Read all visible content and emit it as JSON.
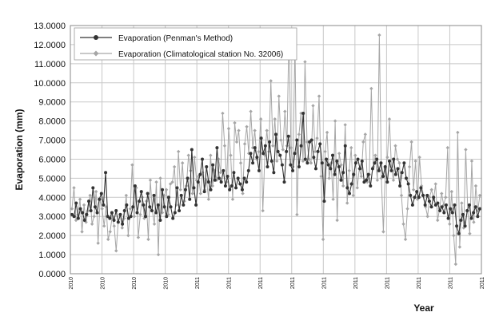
{
  "chart_data": {
    "type": "line",
    "xlabel": "Year",
    "ylabel": "Evaporation (mm)",
    "ylim": [
      0,
      13
    ],
    "ytick_labels": [
      "0.0000",
      "1.0000",
      "2.0000",
      "3.0000",
      "4.0000",
      "5.0000",
      "6.0000",
      "7.0000",
      "8.0000",
      "9.0000",
      "10.0000",
      "11.0000",
      "12.0000",
      "13.0000"
    ],
    "xtick_labels": [
      "2010",
      "2010",
      "2010",
      "2010",
      "2011",
      "2011",
      "2011",
      "2011",
      "2011",
      "2011",
      "2011",
      "2011",
      "2011",
      "2011"
    ],
    "grid": true,
    "legend_position": "top-left",
    "colors": {
      "penman": "#333333",
      "station": "#a6a6a6"
    },
    "series": [
      {
        "name": "Evaporation (Penman's Method)",
        "marker": "circle",
        "values": [
          3.1,
          3.0,
          3.7,
          2.9,
          3.4,
          3.2,
          2.8,
          3.1,
          3.8,
          3.3,
          4.5,
          3.5,
          3.2,
          3.9,
          4.2,
          3.6,
          5.3,
          3.0,
          2.9,
          3.2,
          2.8,
          3.3,
          2.7,
          3.1,
          2.6,
          3.3,
          3.6,
          2.9,
          3.0,
          3.5,
          4.6,
          3.2,
          3.8,
          4.3,
          3.6,
          3.0,
          4.2,
          3.5,
          3.3,
          4.1,
          3.2,
          3.6,
          2.8,
          4.4,
          3.5,
          3.0,
          4.0,
          3.5,
          2.9,
          3.2,
          4.5,
          3.3,
          4.1,
          3.6,
          4.4,
          5.0,
          3.9,
          6.5,
          4.5,
          3.6,
          4.8,
          5.2,
          6.0,
          4.3,
          5.6,
          4.8,
          4.4,
          5.7,
          4.9,
          6.6,
          5.0,
          4.8,
          5.4,
          4.6,
          5.1,
          4.4,
          4.6,
          5.3,
          4.5,
          5.0,
          4.7,
          4.4,
          5.0,
          4.8,
          5.4,
          6.3,
          5.8,
          6.6,
          6.1,
          5.4,
          7.1,
          6.3,
          6.7,
          5.6,
          6.9,
          5.9,
          5.3,
          7.3,
          6.4,
          6.2,
          5.7,
          4.8,
          6.4,
          7.2,
          5.7,
          5.4,
          6.3,
          7.0,
          5.6,
          6.7,
          8.4,
          6.0,
          5.8,
          6.9,
          7.0,
          6.1,
          5.5,
          6.4,
          6.8,
          5.8,
          3.8,
          6.0,
          5.7,
          5.5,
          6.2,
          5.2,
          5.9,
          5.6,
          4.9,
          5.3,
          6.7,
          4.5,
          4.2,
          4.7,
          5.2,
          5.8,
          6.0,
          5.5,
          5.9,
          4.8,
          4.9,
          5.2,
          4.6,
          5.5,
          5.8,
          6.0,
          5.4,
          5.8,
          5.1,
          5.6,
          4.8,
          5.9,
          5.4,
          6.0,
          5.2,
          5.5,
          4.6,
          5.3,
          5.8,
          5.0,
          4.7,
          4.1,
          3.6,
          4.0,
          4.3,
          4.0,
          4.5,
          4.1,
          3.6,
          4.1,
          3.8,
          3.5,
          4.0,
          3.6,
          3.7,
          3.3,
          3.5,
          3.2,
          3.6,
          2.9,
          3.4,
          3.2,
          3.6,
          2.5,
          2.1,
          2.8,
          3.1,
          2.5,
          3.3,
          3.6,
          2.9,
          3.2,
          3.5,
          3.0,
          3.4
        ]
      },
      {
        "name": "Evaporation (Climatological station No. 32006)",
        "marker": "diamond",
        "values": [
          3.4,
          4.5,
          2.8,
          3.1,
          3.9,
          2.2,
          3.6,
          2.7,
          3.3,
          4.1,
          2.6,
          3.0,
          4.3,
          1.6,
          3.9,
          3.4,
          2.5,
          3.5,
          1.8,
          2.2,
          3.0,
          2.5,
          1.2,
          2.7,
          3.1,
          2.4,
          2.9,
          4.1,
          2.0,
          3.4,
          5.7,
          3.0,
          4.5,
          1.9,
          3.1,
          4.0,
          2.9,
          3.8,
          1.8,
          4.9,
          3.3,
          2.6,
          4.8,
          1.0,
          5.0,
          3.2,
          4.1,
          4.4,
          3.1,
          4.7,
          4.8,
          5.6,
          3.6,
          6.4,
          4.4,
          5.8,
          3.8,
          4.6,
          6.2,
          5.4,
          4.2,
          6.1,
          4.9,
          5.1,
          4.2,
          5.3,
          4.4,
          4.9,
          3.9,
          6.2,
          4.6,
          5.4,
          4.9,
          6.0,
          5.3,
          8.4,
          6.7,
          4.8,
          7.6,
          6.2,
          3.9,
          7.9,
          6.9,
          7.5,
          5.8,
          4.2,
          6.8,
          7.7,
          6.3,
          8.5,
          6.6,
          7.5,
          6.0,
          6.4,
          8.1,
          3.3,
          6.2,
          7.5,
          6.4,
          10.1,
          6.7,
          8.1,
          5.9,
          9.3,
          7.0,
          6.5,
          8.5,
          6.7,
          12.7,
          6.6,
          5.6,
          12.1,
          3.1,
          7.3,
          8.4,
          5.9,
          11.1,
          6.9,
          6.0,
          5.8,
          8.8,
          6.4,
          7.1,
          9.3,
          5.1,
          1.8,
          6.4,
          7.4,
          5.0,
          5.8,
          3.9,
          8.0,
          2.8,
          6.3,
          5.7,
          4.6,
          7.8,
          3.7,
          5.4,
          6.6,
          4.1,
          6.2,
          4.5,
          5.5,
          5.1,
          6.9,
          7.3,
          4.8,
          5.2,
          9.7,
          5.6,
          6.2,
          4.9,
          12.5,
          5.0,
          2.2,
          5.5,
          6.1,
          8.1,
          5.6,
          4.9,
          6.7,
          6.0,
          5.8,
          4.1,
          2.6,
          1.8,
          3.4,
          5.6,
          6.9,
          4.4,
          5.9,
          3.9,
          6.1,
          4.6,
          4.1,
          3.5,
          3.0,
          4.0,
          4.4,
          3.9,
          4.7,
          2.8,
          3.4,
          4.2,
          3.6,
          4.0,
          6.6,
          2.6,
          4.3,
          2.0,
          0.5,
          7.4,
          1.4,
          3.7,
          2.4,
          6.5,
          3.3,
          2.1,
          5.9,
          2.7,
          4.6,
          3.3,
          4.1
        ]
      }
    ]
  }
}
